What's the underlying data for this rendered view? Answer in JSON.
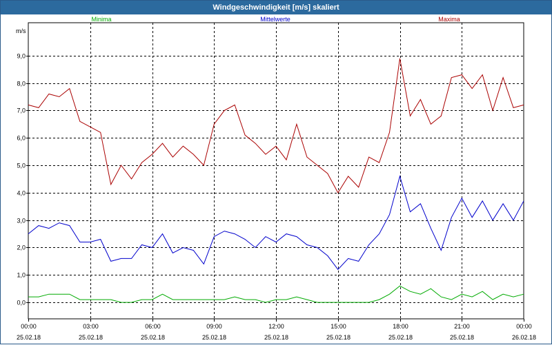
{
  "window": {
    "title": "Windgeschwindigkeit [m/s] skaliert"
  },
  "chart_data": {
    "type": "line",
    "title": "Windgeschwindigkeit [m/s] skaliert",
    "ylabel": "m/s",
    "xlabel": "",
    "ylim": [
      -0.6,
      10.2
    ],
    "xlim": [
      0,
      24
    ],
    "grid": true,
    "legend_placement": "top",
    "y_ticks": [
      {
        "value": 0,
        "label": "0,0"
      },
      {
        "value": 1,
        "label": "1,0"
      },
      {
        "value": 2,
        "label": "2,0"
      },
      {
        "value": 3,
        "label": "3,0"
      },
      {
        "value": 4,
        "label": "4,0"
      },
      {
        "value": 5,
        "label": "5,0"
      },
      {
        "value": 6,
        "label": "6,0"
      },
      {
        "value": 7,
        "label": "7,0"
      },
      {
        "value": 8,
        "label": "8,0"
      },
      {
        "value": 9,
        "label": "9,0"
      }
    ],
    "x_ticks": [
      {
        "value": 0,
        "time": "00:00",
        "date": "25.02.18"
      },
      {
        "value": 3,
        "time": "03:00",
        "date": "25.02.18"
      },
      {
        "value": 6,
        "time": "06:00",
        "date": "25.02.18"
      },
      {
        "value": 9,
        "time": "09:00",
        "date": "25.02.18"
      },
      {
        "value": 12,
        "time": "12:00",
        "date": "25.02.18"
      },
      {
        "value": 15,
        "time": "15:00",
        "date": "25.02.18"
      },
      {
        "value": 18,
        "time": "18:00",
        "date": "25.02.18"
      },
      {
        "value": 21,
        "time": "21:00",
        "date": "25.02.18"
      },
      {
        "value": 24,
        "time": "00:00",
        "date": "26.02.18"
      }
    ],
    "series": [
      {
        "name": "Minima",
        "color": "#00aa00",
        "x": [
          0,
          0.5,
          1,
          1.5,
          2,
          2.5,
          3,
          3.5,
          4,
          4.5,
          5,
          5.5,
          6,
          6.5,
          7,
          7.5,
          8,
          8.5,
          9,
          9.5,
          10,
          10.5,
          11,
          11.5,
          12,
          12.5,
          13,
          13.5,
          14,
          14.5,
          15,
          15.5,
          16,
          16.5,
          17,
          17.5,
          18,
          18.5,
          19,
          19.5,
          20,
          20.5,
          21,
          21.5,
          22,
          22.5,
          23,
          23.5,
          24
        ],
        "values": [
          0.2,
          0.2,
          0.3,
          0.3,
          0.3,
          0.1,
          0.1,
          0.1,
          0.1,
          0.0,
          0.0,
          0.1,
          0.1,
          0.3,
          0.1,
          0.1,
          0.1,
          0.1,
          0.1,
          0.1,
          0.2,
          0.1,
          0.1,
          0.0,
          0.1,
          0.1,
          0.2,
          0.1,
          0.0,
          0.0,
          0.0,
          0.0,
          0.0,
          0.0,
          0.1,
          0.3,
          0.6,
          0.4,
          0.3,
          0.5,
          0.2,
          0.1,
          0.3,
          0.2,
          0.4,
          0.1,
          0.3,
          0.2,
          0.3
        ]
      },
      {
        "name": "Mittelwerte",
        "color": "#0000cc",
        "x": [
          0,
          0.5,
          1,
          1.5,
          2,
          2.5,
          3,
          3.5,
          4,
          4.5,
          5,
          5.5,
          6,
          6.5,
          7,
          7.5,
          8,
          8.5,
          9,
          9.5,
          10,
          10.5,
          11,
          11.5,
          12,
          12.5,
          13,
          13.5,
          14,
          14.5,
          15,
          15.5,
          16,
          16.5,
          17,
          17.5,
          18,
          18.5,
          19,
          19.5,
          20,
          20.5,
          21,
          21.5,
          22,
          22.5,
          23,
          23.5,
          24
        ],
        "values": [
          2.5,
          2.8,
          2.7,
          2.9,
          2.8,
          2.2,
          2.2,
          2.3,
          1.5,
          1.6,
          1.6,
          2.1,
          2.0,
          2.5,
          1.8,
          2.0,
          1.9,
          1.4,
          2.4,
          2.6,
          2.5,
          2.3,
          2.0,
          2.4,
          2.2,
          2.5,
          2.4,
          2.1,
          2.0,
          1.7,
          1.2,
          1.6,
          1.5,
          2.1,
          2.5,
          3.2,
          4.6,
          3.3,
          3.6,
          2.7,
          1.9,
          3.1,
          3.8,
          3.1,
          3.7,
          3.0,
          3.6,
          3.0,
          3.7
        ]
      },
      {
        "name": "Maxima",
        "color": "#aa0000",
        "x": [
          0,
          0.5,
          1,
          1.5,
          2,
          2.5,
          3,
          3.5,
          4,
          4.5,
          5,
          5.5,
          6,
          6.5,
          7,
          7.5,
          8,
          8.5,
          9,
          9.5,
          10,
          10.5,
          11,
          11.5,
          12,
          12.5,
          13,
          13.5,
          14,
          14.5,
          15,
          15.5,
          16,
          16.5,
          17,
          17.5,
          18,
          18.5,
          19,
          19.5,
          20,
          20.5,
          21,
          21.5,
          22,
          22.5,
          23,
          23.5,
          24
        ],
        "values": [
          7.2,
          7.1,
          7.6,
          7.5,
          7.8,
          6.6,
          6.4,
          6.2,
          4.3,
          5.0,
          4.5,
          5.1,
          5.4,
          5.8,
          5.3,
          5.7,
          5.4,
          5.0,
          6.5,
          7.0,
          7.2,
          6.1,
          5.8,
          5.4,
          5.7,
          5.2,
          6.5,
          5.3,
          5.0,
          4.7,
          4.0,
          4.6,
          4.2,
          5.3,
          5.1,
          6.2,
          8.9,
          6.8,
          7.4,
          6.5,
          6.8,
          8.2,
          8.3,
          7.8,
          8.3,
          7.0,
          8.2,
          7.1,
          7.2
        ]
      }
    ]
  }
}
